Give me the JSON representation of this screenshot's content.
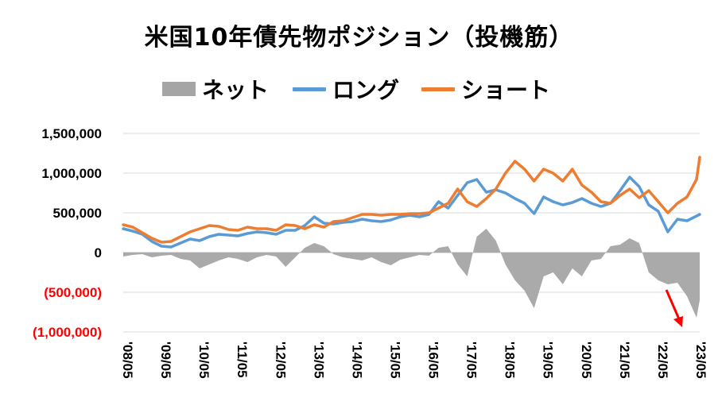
{
  "chart_data": {
    "type": "line",
    "title": "米国10年債先物ポジション（投機筋）",
    "legend_placement": "top",
    "colors": {
      "ネット": "#a5a5a5",
      "ロング": "#5b9bd5",
      "ショート": "#ed7d31",
      "negative_tick": "#ff0000",
      "arrow": "#ff0000"
    },
    "ylim": [
      -1000000,
      1500000
    ],
    "y_ticks": [
      {
        "value": 1500000,
        "label": "1,500,000",
        "negative": false
      },
      {
        "value": 1000000,
        "label": "1,000,000",
        "negative": false
      },
      {
        "value": 500000,
        "label": "500,000",
        "negative": false
      },
      {
        "value": 0,
        "label": "0",
        "negative": false
      },
      {
        "value": -500000,
        "label": "(500,000)",
        "negative": true
      },
      {
        "value": -1000000,
        "label": "(1,000,000)",
        "negative": true
      }
    ],
    "x_range": [
      "2008-05",
      "2023-06"
    ],
    "x_tick_labels": [
      "'08/05",
      "'09/05",
      "'10/05",
      "'11/05",
      "'12/05",
      "'13/05",
      "'14/05",
      "'15/05",
      "'16/05",
      "'17/05",
      "'18/05",
      "'19/05",
      "'20/05",
      "'21/05",
      "'22/05",
      "'23/05"
    ],
    "x_ticks": [
      "2008-05",
      "2009-05",
      "2010-05",
      "2011-05",
      "2012-05",
      "2013-05",
      "2014-05",
      "2015-05",
      "2016-05",
      "2017-05",
      "2018-05",
      "2019-05",
      "2020-05",
      "2021-05",
      "2022-05",
      "2023-05"
    ],
    "grid": "horizontal",
    "series": [
      {
        "name": "ネット",
        "type": "area",
        "x": [
          "2008-05",
          "2008-08",
          "2008-11",
          "2009-02",
          "2009-05",
          "2009-08",
          "2009-11",
          "2010-02",
          "2010-05",
          "2010-08",
          "2010-11",
          "2011-02",
          "2011-05",
          "2011-08",
          "2011-11",
          "2012-02",
          "2012-05",
          "2012-08",
          "2012-11",
          "2013-02",
          "2013-05",
          "2013-08",
          "2013-11",
          "2014-02",
          "2014-05",
          "2014-08",
          "2014-11",
          "2015-02",
          "2015-05",
          "2015-08",
          "2015-11",
          "2016-02",
          "2016-05",
          "2016-08",
          "2016-11",
          "2017-02",
          "2017-05",
          "2017-08",
          "2017-11",
          "2018-02",
          "2018-05",
          "2018-08",
          "2018-11",
          "2019-02",
          "2019-05",
          "2019-08",
          "2019-11",
          "2020-02",
          "2020-05",
          "2020-08",
          "2020-11",
          "2021-02",
          "2021-05",
          "2021-08",
          "2021-11",
          "2022-02",
          "2022-05",
          "2022-08",
          "2022-11",
          "2023-02",
          "2023-05",
          "2023-06"
        ],
        "values": [
          -50000,
          -30000,
          -20000,
          -60000,
          -40000,
          -30000,
          -80000,
          -100000,
          -200000,
          -150000,
          -100000,
          -60000,
          -80000,
          -120000,
          -60000,
          -30000,
          -50000,
          -180000,
          -60000,
          60000,
          120000,
          80000,
          -20000,
          -60000,
          -80000,
          -100000,
          -60000,
          -120000,
          -160000,
          -90000,
          -60000,
          -30000,
          -40000,
          60000,
          80000,
          -150000,
          -300000,
          200000,
          300000,
          150000,
          -150000,
          -350000,
          -480000,
          -700000,
          -300000,
          -250000,
          -400000,
          -200000,
          -300000,
          -100000,
          -80000,
          80000,
          100000,
          180000,
          120000,
          -250000,
          -350000,
          -400000,
          -380000,
          -550000,
          -820000,
          -600000
        ]
      },
      {
        "name": "ロング",
        "type": "line",
        "x": [
          "2008-05",
          "2008-08",
          "2008-11",
          "2009-02",
          "2009-05",
          "2009-08",
          "2009-11",
          "2010-02",
          "2010-05",
          "2010-08",
          "2010-11",
          "2011-02",
          "2011-05",
          "2011-08",
          "2011-11",
          "2012-02",
          "2012-05",
          "2012-08",
          "2012-11",
          "2013-02",
          "2013-05",
          "2013-08",
          "2013-11",
          "2014-02",
          "2014-05",
          "2014-08",
          "2014-11",
          "2015-02",
          "2015-05",
          "2015-08",
          "2015-11",
          "2016-02",
          "2016-05",
          "2016-08",
          "2016-11",
          "2017-02",
          "2017-05",
          "2017-08",
          "2017-11",
          "2018-02",
          "2018-05",
          "2018-08",
          "2018-11",
          "2019-02",
          "2019-05",
          "2019-08",
          "2019-11",
          "2020-02",
          "2020-05",
          "2020-08",
          "2020-11",
          "2021-02",
          "2021-05",
          "2021-08",
          "2021-11",
          "2022-02",
          "2022-05",
          "2022-08",
          "2022-11",
          "2023-02",
          "2023-05",
          "2023-06"
        ],
        "values": [
          300000,
          270000,
          230000,
          140000,
          80000,
          70000,
          120000,
          170000,
          150000,
          200000,
          230000,
          220000,
          210000,
          240000,
          260000,
          250000,
          230000,
          280000,
          280000,
          340000,
          450000,
          370000,
          360000,
          380000,
          390000,
          420000,
          400000,
          390000,
          410000,
          450000,
          470000,
          450000,
          480000,
          640000,
          560000,
          720000,
          880000,
          920000,
          760000,
          790000,
          750000,
          680000,
          620000,
          490000,
          700000,
          640000,
          600000,
          630000,
          680000,
          620000,
          580000,
          620000,
          780000,
          950000,
          830000,
          600000,
          520000,
          260000,
          420000,
          400000,
          460000,
          480000
        ]
      },
      {
        "name": "ショート",
        "type": "line",
        "x": [
          "2008-05",
          "2008-08",
          "2008-11",
          "2009-02",
          "2009-05",
          "2009-08",
          "2009-11",
          "2010-02",
          "2010-05",
          "2010-08",
          "2010-11",
          "2011-02",
          "2011-05",
          "2011-08",
          "2011-11",
          "2012-02",
          "2012-05",
          "2012-08",
          "2012-11",
          "2013-02",
          "2013-05",
          "2013-08",
          "2013-11",
          "2014-02",
          "2014-05",
          "2014-08",
          "2014-11",
          "2015-02",
          "2015-05",
          "2015-08",
          "2015-11",
          "2016-02",
          "2016-05",
          "2016-08",
          "2016-11",
          "2017-02",
          "2017-05",
          "2017-08",
          "2017-11",
          "2018-02",
          "2018-05",
          "2018-08",
          "2018-11",
          "2019-02",
          "2019-05",
          "2019-08",
          "2019-11",
          "2020-02",
          "2020-05",
          "2020-08",
          "2020-11",
          "2021-02",
          "2021-05",
          "2021-08",
          "2021-11",
          "2022-02",
          "2022-05",
          "2022-08",
          "2022-11",
          "2023-02",
          "2023-05",
          "2023-06"
        ],
        "values": [
          350000,
          320000,
          250000,
          180000,
          130000,
          140000,
          200000,
          260000,
          300000,
          340000,
          330000,
          290000,
          280000,
          320000,
          300000,
          300000,
          280000,
          350000,
          340000,
          300000,
          350000,
          320000,
          390000,
          400000,
          440000,
          480000,
          480000,
          470000,
          480000,
          480000,
          490000,
          490000,
          500000,
          560000,
          620000,
          800000,
          640000,
          580000,
          680000,
          800000,
          1000000,
          1150000,
          1050000,
          900000,
          1050000,
          1000000,
          900000,
          1050000,
          850000,
          760000,
          640000,
          620000,
          720000,
          800000,
          690000,
          780000,
          640000,
          500000,
          620000,
          700000,
          920000,
          1200000
        ]
      }
    ]
  }
}
